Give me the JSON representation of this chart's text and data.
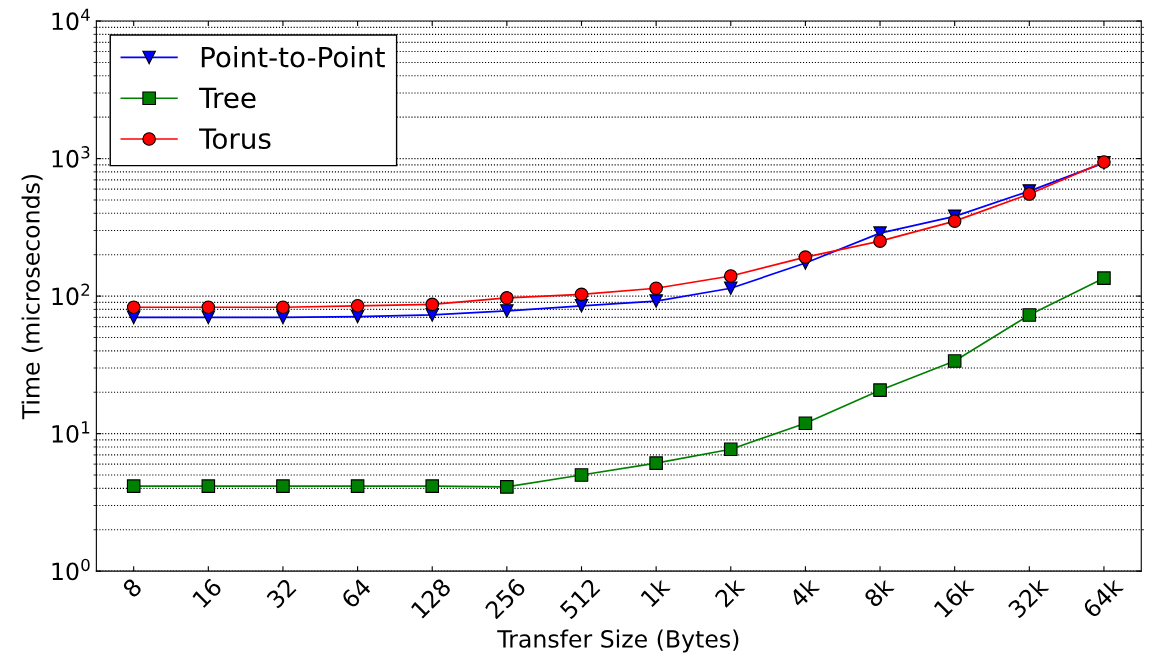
{
  "chart_data": {
    "type": "line",
    "xlabel": "Transfer Size (Bytes)",
    "ylabel": "Time (microseconds)",
    "categories": [
      "8",
      "16",
      "32",
      "64",
      "128",
      "256",
      "512",
      "1k",
      "2k",
      "4k",
      "8k",
      "16k",
      "32k",
      "64k"
    ],
    "series": [
      {
        "name": "Point-to-Point",
        "color": "#0000ff",
        "marker": "triangle",
        "values": [
          70,
          70,
          70,
          71,
          73,
          78,
          85,
          92,
          114,
          174,
          287,
          380,
          580,
          930
        ]
      },
      {
        "name": "Tree",
        "color": "#008000",
        "marker": "square",
        "values": [
          4.15,
          4.15,
          4.15,
          4.15,
          4.15,
          4.1,
          5.0,
          6.1,
          7.7,
          11.9,
          20.7,
          33.7,
          72.8,
          135
        ]
      },
      {
        "name": "Torus",
        "color": "#ff0000",
        "marker": "circle",
        "values": [
          83,
          83,
          83,
          85,
          87,
          97,
          103,
          114,
          140,
          192,
          251,
          351,
          552,
          944
        ]
      }
    ],
    "log": "y",
    "ylim": [
      1,
      10000
    ],
    "yticks": [
      {
        "value": 1,
        "label": "10$^{0}$"
      },
      {
        "value": 10,
        "label": "10$^{1}$"
      },
      {
        "value": 100,
        "label": "10$^{2}$"
      },
      {
        "value": 1000,
        "label": "10$^{3}$"
      },
      {
        "value": 10000,
        "label": "10$^{4}$"
      }
    ],
    "grid": "y",
    "legend": "top left",
    "line_style": "solid"
  }
}
